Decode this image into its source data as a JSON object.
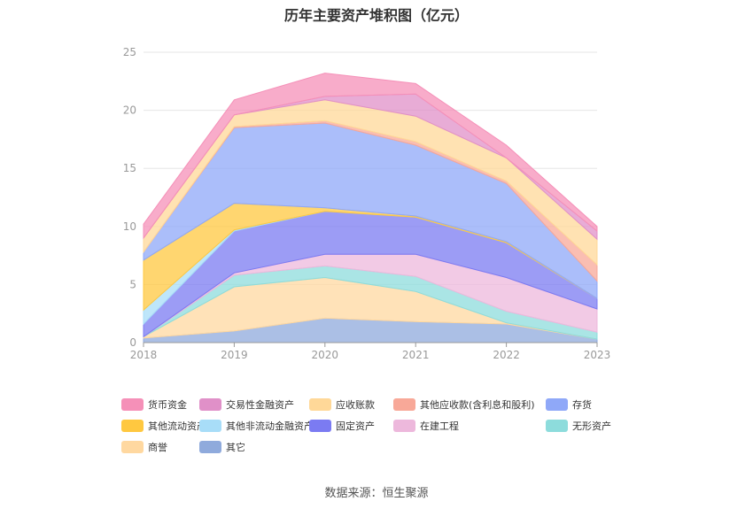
{
  "chart_data": {
    "type": "area",
    "stacked": true,
    "title": "历年主要资产堆积图（亿元）",
    "source": "数据来源：恒生聚源",
    "categories": [
      "2018",
      "2019",
      "2020",
      "2021",
      "2022",
      "2023"
    ],
    "y_ticks": [
      "0",
      "5",
      "10",
      "15",
      "20",
      "25"
    ],
    "ylim": [
      0,
      25
    ],
    "grid": true,
    "legend_position": "bottom",
    "series": [
      {
        "name": "其它",
        "color": "#8FAADC",
        "values": [
          0.4,
          1.0,
          2.1,
          1.8,
          1.6,
          0.3
        ]
      },
      {
        "name": "商誉",
        "color": "#FFD8A0",
        "values": [
          0.1,
          3.8,
          3.5,
          2.6,
          0.1,
          0.0
        ]
      },
      {
        "name": "无形资产",
        "color": "#8DDCDC",
        "values": [
          0.0,
          1.0,
          1.0,
          1.3,
          1.0,
          0.6
        ]
      },
      {
        "name": "在建工程",
        "color": "#EDB8DC",
        "values": [
          0.0,
          0.2,
          1.0,
          1.9,
          2.9,
          2.0
        ]
      },
      {
        "name": "固定资产",
        "color": "#7B7BF2",
        "values": [
          1.1,
          3.6,
          3.7,
          3.2,
          3.0,
          0.9
        ]
      },
      {
        "name": "其他非流动金融资产",
        "color": "#A8DDF8",
        "values": [
          1.2,
          0.1,
          0.0,
          0.0,
          0.0,
          0.0
        ]
      },
      {
        "name": "其他流动资产",
        "color": "#FFC840",
        "values": [
          4.3,
          2.3,
          0.3,
          0.1,
          0.1,
          0.0
        ]
      },
      {
        "name": "存货",
        "color": "#8FA8F8",
        "values": [
          0.7,
          6.5,
          7.3,
          6.1,
          5.0,
          1.5
        ]
      },
      {
        "name": "其他应收款(含利息和股利)",
        "color": "#F8A898",
        "values": [
          0.0,
          0.1,
          0.2,
          0.3,
          0.2,
          1.4
        ]
      },
      {
        "name": "应收账款",
        "color": "#FFD898",
        "values": [
          1.2,
          1.0,
          1.8,
          2.2,
          2.0,
          2.2
        ]
      },
      {
        "name": "交易性金融资产",
        "color": "#E090C8",
        "values": [
          0.0,
          0.0,
          0.3,
          1.9,
          0.0,
          0.7
        ]
      },
      {
        "name": "货币资金",
        "color": "#F590B8",
        "values": [
          1.2,
          1.3,
          2.0,
          0.9,
          1.1,
          0.4
        ]
      }
    ],
    "legend_order": [
      "货币资金",
      "交易性金融资产",
      "应收账款",
      "其他应收款(含利息和股利)",
      "存货",
      "其他流动资产",
      "其他非流动金融资产",
      "固定资产",
      "在建工程",
      "无形资产",
      "商誉",
      "其它"
    ]
  }
}
